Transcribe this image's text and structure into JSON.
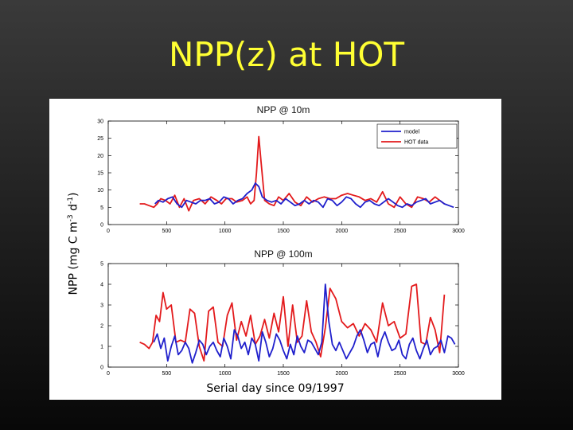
{
  "slide": {
    "title": "NPP(z) at HOT",
    "ylabel_pre": "NPP (mg C m",
    "ylabel_exp1": "-3",
    "ylabel_mid": " d",
    "ylabel_exp2": "-1",
    "ylabel_post": ")",
    "xlabel": "Serial day since 09/1997"
  },
  "colors": {
    "model": "#1f1fcc",
    "data": "#e31a1c"
  },
  "chart_data": [
    {
      "type": "line",
      "title": "NPP @ 10m",
      "xlim": [
        0,
        3000
      ],
      "ylim": [
        0,
        30
      ],
      "xticks": [
        0,
        500,
        1000,
        1500,
        2000,
        2500,
        3000
      ],
      "yticks": [
        0,
        5,
        10,
        15,
        20,
        25,
        30
      ],
      "legend": {
        "position": "top-right",
        "entries": [
          "model",
          "HOT data"
        ]
      },
      "series": [
        {
          "name": "model",
          "x": [
            400,
            430,
            470,
            510,
            550,
            590,
            630,
            670,
            710,
            750,
            790,
            830,
            870,
            910,
            950,
            990,
            1030,
            1070,
            1110,
            1150,
            1190,
            1230,
            1260,
            1290,
            1320,
            1360,
            1400,
            1440,
            1480,
            1520,
            1560,
            1600,
            1640,
            1680,
            1720,
            1760,
            1800,
            1840,
            1880,
            1920,
            1960,
            2000,
            2040,
            2080,
            2120,
            2160,
            2200,
            2240,
            2280,
            2320,
            2360,
            2400,
            2440,
            2480,
            2520,
            2560,
            2600,
            2640,
            2680,
            2720,
            2760,
            2800,
            2840,
            2880,
            2920,
            2960
          ],
          "y": [
            6,
            7,
            6.5,
            7.5,
            8,
            6,
            5,
            7,
            6.5,
            6,
            7,
            7,
            7.5,
            6,
            6.5,
            8,
            7.5,
            6,
            7,
            7.5,
            9,
            10,
            12,
            11,
            8,
            7,
            6.5,
            7,
            6,
            7.5,
            6.5,
            5.5,
            6,
            7,
            6,
            7,
            6.5,
            5,
            7.5,
            7,
            5.5,
            6.5,
            8,
            7.5,
            6,
            5,
            6.5,
            7,
            6,
            5.5,
            6.5,
            7.5,
            6.5,
            5.5,
            5,
            6,
            5.5,
            6.5,
            7,
            7.5,
            6,
            6.5,
            7,
            6,
            5.5,
            5
          ]
        },
        {
          "name": "HOT data",
          "x": [
            270,
            310,
            350,
            390,
            420,
            450,
            490,
            530,
            570,
            610,
            650,
            690,
            730,
            780,
            830,
            880,
            930,
            970,
            1010,
            1060,
            1100,
            1150,
            1190,
            1220,
            1250,
            1270,
            1290,
            1310,
            1340,
            1380,
            1420,
            1460,
            1500,
            1550,
            1600,
            1650,
            1700,
            1750,
            1800,
            1850,
            1900,
            1950,
            2000,
            2050,
            2100,
            2150,
            2200,
            2250,
            2300,
            2350,
            2400,
            2450,
            2500,
            2550,
            2600,
            2650,
            2700,
            2750,
            2800,
            2840,
            2880
          ],
          "y": [
            6,
            6,
            5.5,
            5,
            6,
            7.5,
            7,
            6,
            8.5,
            5,
            7.5,
            4,
            7,
            7.5,
            6,
            8,
            7,
            6,
            7.5,
            7.5,
            6.5,
            7,
            8,
            6,
            7,
            15,
            25.5,
            18,
            7,
            6,
            5.5,
            8,
            7,
            9,
            6.5,
            5.5,
            8,
            6.5,
            7.5,
            8,
            7.5,
            7.5,
            8.5,
            9,
            8.5,
            8,
            7,
            7.5,
            6.5,
            9.5,
            6,
            5,
            8,
            6,
            5,
            8,
            7.5,
            6.5,
            8,
            7,
            6
          ]
        }
      ]
    },
    {
      "type": "line",
      "title": "NPP @ 100m",
      "xlim": [
        0,
        3000
      ],
      "ylim": [
        0,
        5
      ],
      "xticks": [
        0,
        500,
        1000,
        1500,
        2000,
        2500,
        3000
      ],
      "yticks": [
        0,
        1,
        2,
        3,
        4,
        5
      ],
      "series": [
        {
          "name": "model",
          "x": [
            390,
            420,
            450,
            480,
            510,
            540,
            570,
            600,
            630,
            660,
            690,
            720,
            750,
            780,
            810,
            840,
            870,
            900,
            930,
            960,
            990,
            1020,
            1050,
            1080,
            1110,
            1140,
            1170,
            1200,
            1230,
            1260,
            1290,
            1320,
            1350,
            1380,
            1410,
            1440,
            1470,
            1500,
            1530,
            1560,
            1590,
            1620,
            1650,
            1680,
            1710,
            1740,
            1770,
            1800,
            1830,
            1860,
            1890,
            1920,
            1950,
            1980,
            2010,
            2040,
            2070,
            2100,
            2130,
            2160,
            2190,
            2220,
            2250,
            2280,
            2310,
            2340,
            2370,
            2400,
            2430,
            2460,
            2490,
            2520,
            2550,
            2580,
            2610,
            2640,
            2670,
            2700,
            2730,
            2760,
            2790,
            2820,
            2850,
            2880,
            2910,
            2940,
            2970
          ],
          "y": [
            1.2,
            1.6,
            0.9,
            1.4,
            0.3,
            1,
            1.5,
            0.6,
            0.8,
            1.2,
            0.9,
            0.2,
            0.7,
            1.3,
            1.1,
            0.6,
            1,
            1.2,
            0.8,
            0.5,
            1.4,
            1,
            0.4,
            1.8,
            1.5,
            0.9,
            1.2,
            0.6,
            1.4,
            1.1,
            0.3,
            1.7,
            1.2,
            0.5,
            0.9,
            1.6,
            1.3,
            0.8,
            0.4,
            1.1,
            0.6,
            1.5,
            1,
            0.7,
            1.3,
            1.2,
            0.9,
            0.6,
            1.2,
            4,
            2.2,
            1.1,
            0.8,
            1.2,
            0.8,
            0.4,
            0.7,
            1,
            1.5,
            1.8,
            1.3,
            0.7,
            1.1,
            1.2,
            0.5,
            1.3,
            1.7,
            1.2,
            0.8,
            0.9,
            1.3,
            0.6,
            0.4,
            1.1,
            1.4,
            0.8,
            0.4,
            0.9,
            1.3,
            0.6,
            0.9,
            1,
            1.3,
            0.7,
            1.5,
            1.4,
            1.1
          ]
        },
        {
          "name": "HOT data",
          "x": [
            270,
            310,
            350,
            380,
            410,
            440,
            470,
            500,
            540,
            580,
            620,
            660,
            700,
            740,
            780,
            820,
            860,
            900,
            940,
            980,
            1020,
            1060,
            1100,
            1140,
            1180,
            1220,
            1260,
            1300,
            1340,
            1380,
            1420,
            1460,
            1500,
            1540,
            1580,
            1620,
            1660,
            1700,
            1740,
            1780,
            1820,
            1860,
            1900,
            1950,
            2000,
            2050,
            2100,
            2150,
            2200,
            2250,
            2300,
            2350,
            2400,
            2450,
            2500,
            2550,
            2600,
            2640,
            2680,
            2720,
            2760,
            2800,
            2840,
            2880
          ],
          "y": [
            1.2,
            1.1,
            0.9,
            1.2,
            2.5,
            2.2,
            3.6,
            2.8,
            3,
            1.2,
            1.3,
            1.2,
            2.8,
            2.6,
            1,
            0.3,
            2.7,
            2.9,
            1.2,
            1,
            2.5,
            3.1,
            1.3,
            2.2,
            1.5,
            2.5,
            1.1,
            1.5,
            2.3,
            1.4,
            2.6,
            1.7,
            3.4,
            1,
            3,
            1.2,
            1.5,
            3.2,
            1.7,
            1.2,
            0.5,
            1.9,
            3.8,
            3.3,
            2.2,
            1.9,
            2.1,
            1.5,
            2.1,
            1.8,
            1.2,
            3.1,
            2,
            2.2,
            1.4,
            1.6,
            3.9,
            4,
            1.2,
            1.1,
            2.4,
            1.8,
            0.7,
            3.5
          ]
        }
      ]
    }
  ]
}
